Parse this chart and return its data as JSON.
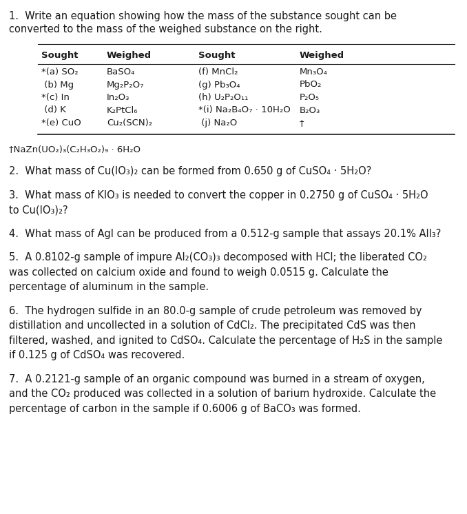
{
  "bg_color": "#ffffff",
  "text_color": "#1a1a1a",
  "title_q1_line1": "1.  Write an equation showing how the mass of the substance sought can be",
  "title_q1_line2": "converted to the mass of the weighed substance on the right.",
  "table_headers": [
    "Sought",
    "Weighed",
    "Sought",
    "Weighed"
  ],
  "table_col1_sought": [
    "*(a) SO₂",
    " (b) Mg",
    "*(c) In",
    " (d) K",
    "*(e) CuO"
  ],
  "table_col2_weighed": [
    "BaSO₄",
    "Mg₂P₂O₇",
    "In₂O₃",
    "K₂PtCl₆",
    "Cu₂(SCN)₂"
  ],
  "table_col3_sought": [
    "(f) MnCl₂",
    "(g) Pb₃O₄",
    "(h) U₂P₂O₁₁",
    "*(i) Na₂B₄O₇ · 10H₂O",
    " (j) Na₂O"
  ],
  "table_col4_weighed": [
    "Mn₃O₄",
    "PbO₂",
    "P₂O₅",
    "B₂O₃",
    "†"
  ],
  "footnote": "†NaZn(UO₂)₃(C₂H₃O₂)₉ · 6H₂O",
  "q2": "2.  What mass of Cu(IO₃)₂ can be formed from 0.650 g of CuSO₄ · 5H₂O?",
  "q3_line1": "3.  What mass of KIO₃ is needed to convert the copper in 0.2750 g of CuSO₄ · 5H₂O",
  "q3_line2": "to Cu(IO₃)₂?",
  "q4": "4.  What mass of AgI can be produced from a 0.512-g sample that assays 20.1% AlI₃?",
  "q5_line1": "5.  A 0.8102-g sample of impure Al₂(CO₃)₃ decomposed with HCl; the liberated CO₂",
  "q5_line2": "was collected on calcium oxide and found to weigh 0.0515 g. Calculate the",
  "q5_line3": "percentage of aluminum in the sample.",
  "q6_line1": "6.  The hydrogen sulfide in an 80.0-g sample of crude petroleum was removed by",
  "q6_line2": "distillation and uncollected in a solution of CdCl₂. The precipitated CdS was then",
  "q6_line3": "filtered, washed, and ignited to CdSO₄. Calculate the percentage of H₂S in the sample",
  "q6_line4": "if 0.125 g of CdSO₄ was recovered.",
  "q7_line1": "7.  A 0.2121-g sample of an organic compound was burned in a stream of oxygen,",
  "q7_line2": "and the CO₂ produced was collected in a solution of barium hydroxide. Calculate the",
  "q7_line3": "percentage of carbon in the sample if 0.6006 g of BaCO₃ was formed.",
  "font_size_main": 10.5,
  "font_size_table": 9.5,
  "font_family": "DejaVu Sans"
}
